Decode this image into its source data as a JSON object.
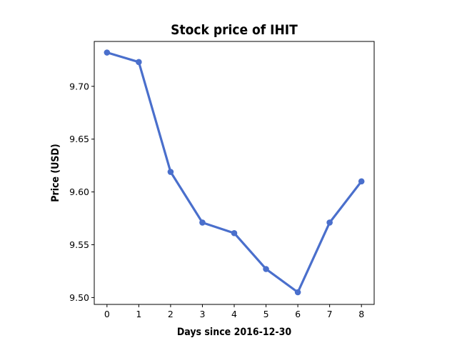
{
  "chart_data": {
    "type": "line",
    "title": "Stock price of IHIT",
    "xlabel": "Days since 2016-12-30",
    "ylabel": "Price (USD)",
    "x": [
      0,
      1,
      2,
      3,
      4,
      5,
      6,
      7,
      8
    ],
    "series": [
      {
        "values": [
          9.732,
          9.723,
          9.619,
          9.571,
          9.561,
          9.527,
          9.505,
          9.571,
          9.61
        ],
        "color": "#4a6fcc"
      }
    ],
    "xlim": [
      -0.4,
      8.4
    ],
    "ylim": [
      9.4935,
      9.7425
    ],
    "xticks": [
      0,
      1,
      2,
      3,
      4,
      5,
      6,
      7,
      8
    ],
    "yticks": [
      9.5,
      9.55,
      9.6,
      9.65,
      9.7
    ],
    "ytick_labels": [
      "9.50",
      "9.55",
      "9.60",
      "9.65",
      "9.70"
    ],
    "grid": false,
    "legend": "none"
  }
}
